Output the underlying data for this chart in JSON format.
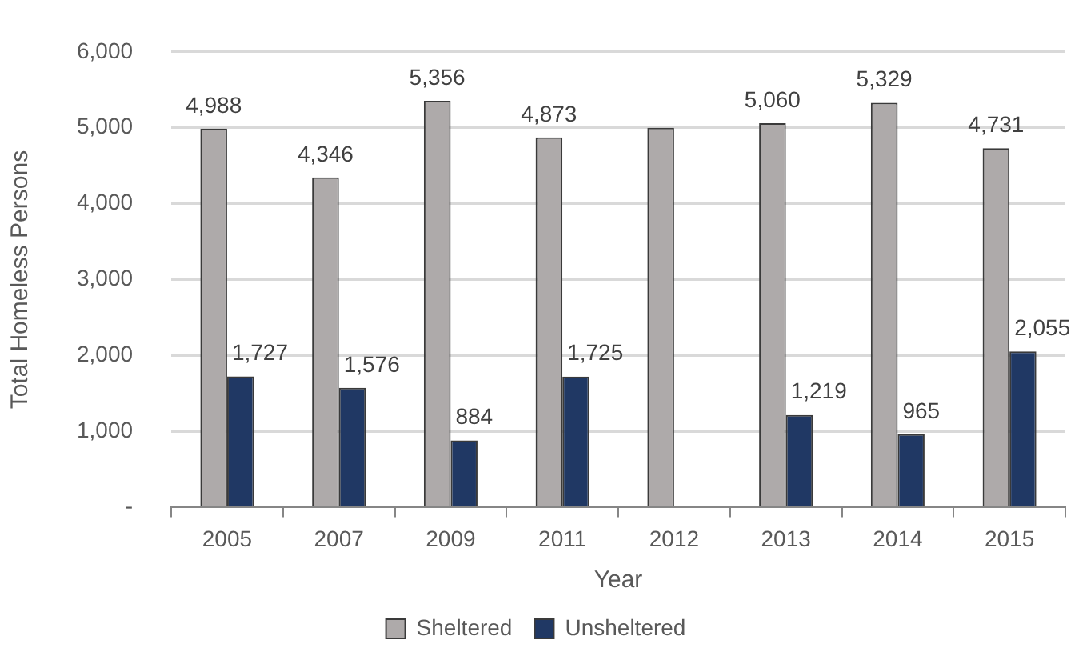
{
  "chart_data": {
    "type": "bar",
    "xlabel": "Year",
    "ylabel": "Total Homeless Persons",
    "categories": [
      "2005",
      "2007",
      "2009",
      "2011",
      "2012",
      "2013",
      "2014",
      "2015"
    ],
    "series": [
      {
        "name": "Sheltered",
        "color": "#aeaaaa",
        "values": [
          4988,
          4346,
          5356,
          4873,
          5000,
          5060,
          5329,
          4731
        ],
        "value_labels": [
          "4,988",
          "4,346",
          "5,356",
          "4,873",
          null,
          "5,060",
          "5,329",
          "4,731"
        ]
      },
      {
        "name": "Unsheltered",
        "color": "#203864",
        "values": [
          1727,
          1576,
          884,
          1725,
          null,
          1219,
          965,
          2055
        ],
        "value_labels": [
          "1,727",
          "1,576",
          "884",
          "1,725",
          null,
          "1,219",
          "965",
          "2,055"
        ]
      }
    ],
    "ylim": [
      0,
      6000
    ],
    "yticks": [
      {
        "value": 0,
        "label": "-"
      },
      {
        "value": 1000,
        "label": "1,000"
      },
      {
        "value": 2000,
        "label": "2,000"
      },
      {
        "value": 3000,
        "label": "3,000"
      },
      {
        "value": 4000,
        "label": "4,000"
      },
      {
        "value": 5000,
        "label": "5,000"
      },
      {
        "value": 6000,
        "label": "6,000"
      }
    ],
    "grid": "y",
    "legend": "bottom"
  }
}
